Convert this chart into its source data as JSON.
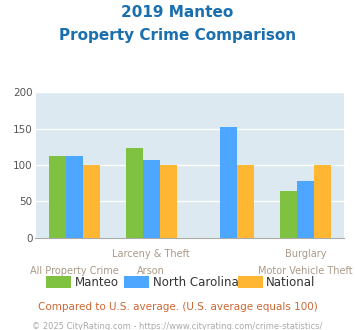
{
  "title_line1": "2019 Manteo",
  "title_line2": "Property Crime Comparison",
  "title_color": "#1a6faf",
  "cat_labels_line1": [
    "",
    "Larceny & Theft",
    "",
    "Burglary"
  ],
  "cat_labels_line2": [
    "All Property Crime",
    "Arson",
    "",
    "Motor Vehicle Theft"
  ],
  "groups": [
    "Manteo",
    "North Carolina",
    "National"
  ],
  "values": [
    [
      112,
      124,
      0,
      64
    ],
    [
      112,
      107,
      152,
      78
    ],
    [
      100,
      100,
      100,
      100
    ]
  ],
  "colors": [
    "#7fc241",
    "#4da6ff",
    "#ffb733"
  ],
  "ylim": [
    0,
    200
  ],
  "yticks": [
    0,
    50,
    100,
    150,
    200
  ],
  "plot_bg": "#dce9f0",
  "footnote_color": "#cc6633",
  "footnote": "Compared to U.S. average. (U.S. average equals 100)",
  "copyright": "© 2025 CityRating.com - https://www.cityrating.com/crime-statistics/",
  "copyright_color": "#aaaaaa",
  "grid_color": "#ffffff",
  "bar_width": 0.22,
  "legend_label_color": "#333333"
}
